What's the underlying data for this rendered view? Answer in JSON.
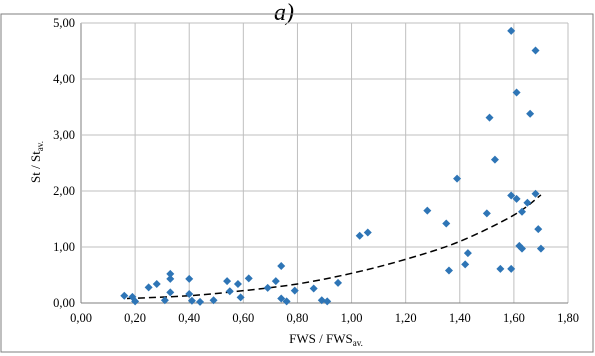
{
  "panel_label": "a)",
  "axes": {
    "xlabel_main": "FWS / FWS",
    "xlabel_sub": "av.",
    "ylabel_main": "St / St",
    "ylabel_sub": "av."
  },
  "colors": {
    "marker": "#2e75b6",
    "trend": "#000000",
    "grid": "#bfbfbf",
    "frame": "#7f7f7f"
  },
  "chart_data": {
    "type": "scatter",
    "title": "",
    "xlim": [
      0.0,
      1.8
    ],
    "ylim": [
      0.0,
      5.0
    ],
    "grid": true,
    "legend": "none",
    "x_tick_labels": [
      "0,00",
      "0,20",
      "0,40",
      "0,60",
      "0,80",
      "1,00",
      "1,20",
      "1,40",
      "1,60",
      "1,80"
    ],
    "y_tick_labels": [
      "0,00",
      "1,00",
      "2,00",
      "3,00",
      "4,00",
      "5,00"
    ],
    "x_ticks": [
      0.0,
      0.2,
      0.4,
      0.6,
      0.8,
      1.0,
      1.2,
      1.4,
      1.6,
      1.8
    ],
    "y_ticks": [
      0.0,
      1.0,
      2.0,
      3.0,
      4.0,
      5.0
    ],
    "marker": "diamond",
    "points": [
      [
        0.16,
        0.13
      ],
      [
        0.19,
        0.11
      ],
      [
        0.2,
        0.03
      ],
      [
        0.25,
        0.28
      ],
      [
        0.28,
        0.34
      ],
      [
        0.31,
        0.05
      ],
      [
        0.33,
        0.43
      ],
      [
        0.33,
        0.52
      ],
      [
        0.33,
        0.19
      ],
      [
        0.4,
        0.43
      ],
      [
        0.4,
        0.16
      ],
      [
        0.41,
        0.04
      ],
      [
        0.44,
        0.02
      ],
      [
        0.49,
        0.05
      ],
      [
        0.54,
        0.39
      ],
      [
        0.55,
        0.21
      ],
      [
        0.58,
        0.34
      ],
      [
        0.59,
        0.1
      ],
      [
        0.62,
        0.44
      ],
      [
        0.69,
        0.27
      ],
      [
        0.72,
        0.39
      ],
      [
        0.74,
        0.66
      ],
      [
        0.74,
        0.08
      ],
      [
        0.76,
        0.03
      ],
      [
        0.79,
        0.22
      ],
      [
        0.86,
        0.26
      ],
      [
        0.89,
        0.05
      ],
      [
        0.91,
        0.03
      ],
      [
        0.95,
        0.36
      ],
      [
        1.03,
        1.2
      ],
      [
        1.06,
        1.26
      ],
      [
        1.28,
        1.65
      ],
      [
        1.35,
        1.42
      ],
      [
        1.36,
        0.58
      ],
      [
        1.39,
        2.22
      ],
      [
        1.42,
        0.69
      ],
      [
        1.43,
        0.89
      ],
      [
        1.5,
        1.6
      ],
      [
        1.51,
        3.31
      ],
      [
        1.53,
        2.56
      ],
      [
        1.55,
        0.61
      ],
      [
        1.59,
        4.86
      ],
      [
        1.59,
        0.61
      ],
      [
        1.59,
        1.92
      ],
      [
        1.61,
        3.76
      ],
      [
        1.61,
        1.86
      ],
      [
        1.62,
        1.02
      ],
      [
        1.63,
        1.63
      ],
      [
        1.63,
        0.97
      ],
      [
        1.65,
        1.79
      ],
      [
        1.66,
        3.38
      ],
      [
        1.68,
        4.51
      ],
      [
        1.68,
        1.95
      ],
      [
        1.69,
        1.32
      ],
      [
        1.7,
        0.97
      ]
    ],
    "trendline": {
      "type": "exponential",
      "style": "dashed",
      "points": [
        [
          0.17,
          0.08
        ],
        [
          0.4,
          0.13
        ],
        [
          0.6,
          0.22
        ],
        [
          0.8,
          0.34
        ],
        [
          1.0,
          0.53
        ],
        [
          1.2,
          0.78
        ],
        [
          1.4,
          1.1
        ],
        [
          1.6,
          1.57
        ],
        [
          1.7,
          1.93
        ]
      ]
    }
  }
}
